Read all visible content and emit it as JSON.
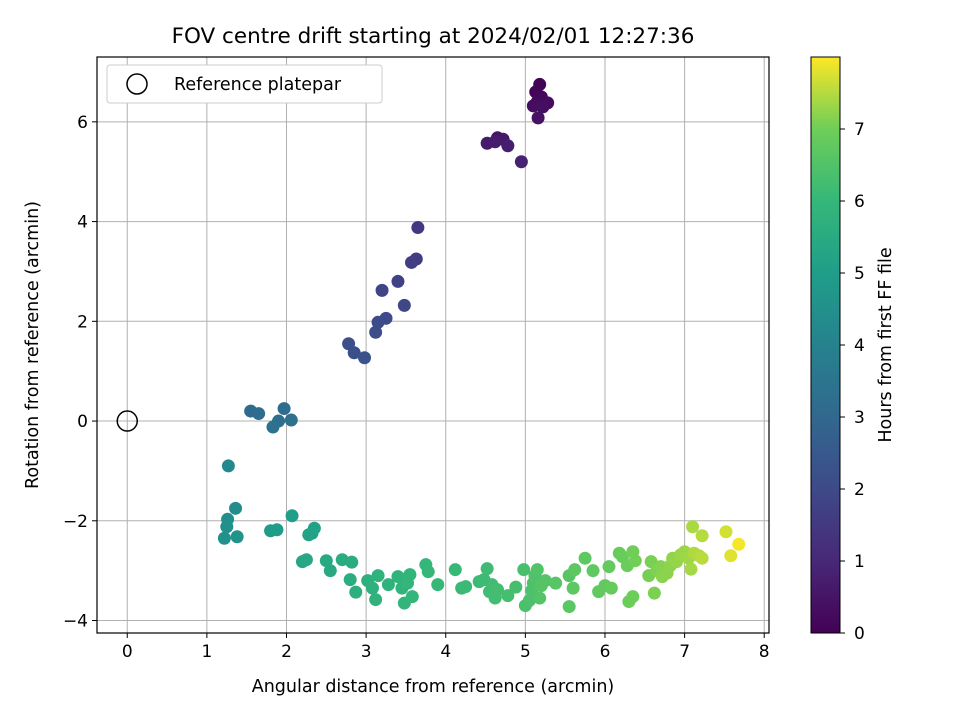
{
  "chart_data": {
    "type": "scatter",
    "title": "FOV centre drift starting at 2024/02/01 12:27:36",
    "xlabel": "Angular distance from reference (arcmin)",
    "ylabel": "Rotation from reference (arcmin)",
    "xlim": [
      -0.38,
      8.06
    ],
    "ylim": [
      -4.25,
      7.3
    ],
    "xticks": [
      0,
      1,
      2,
      3,
      4,
      5,
      6,
      7,
      8
    ],
    "yticks": [
      -4,
      -2,
      0,
      2,
      4,
      6
    ],
    "grid": true,
    "legend": {
      "position": "top-left",
      "entries": [
        "Reference platepar"
      ]
    },
    "reference_point": {
      "x": 0,
      "y": 0
    },
    "colorbar": {
      "label": "Hours from first FF file",
      "colormap": "viridis",
      "range": [
        0,
        8
      ],
      "ticks": [
        0,
        1,
        2,
        3,
        4,
        5,
        6,
        7
      ]
    },
    "points": [
      {
        "x": 5.18,
        "y": 6.75,
        "t": 0.05
      },
      {
        "x": 5.13,
        "y": 6.6,
        "t": 0.1
      },
      {
        "x": 5.2,
        "y": 6.5,
        "t": 0.15
      },
      {
        "x": 5.15,
        "y": 6.4,
        "t": 0.2
      },
      {
        "x": 5.28,
        "y": 6.38,
        "t": 0.25
      },
      {
        "x": 5.1,
        "y": 6.32,
        "t": 0.3
      },
      {
        "x": 5.22,
        "y": 6.3,
        "t": 0.35
      },
      {
        "x": 5.16,
        "y": 6.08,
        "t": 0.4
      },
      {
        "x": 4.65,
        "y": 5.68,
        "t": 0.55
      },
      {
        "x": 4.72,
        "y": 5.65,
        "t": 0.6
      },
      {
        "x": 4.52,
        "y": 5.57,
        "t": 0.65
      },
      {
        "x": 4.62,
        "y": 5.6,
        "t": 0.7
      },
      {
        "x": 4.78,
        "y": 5.52,
        "t": 0.75
      },
      {
        "x": 4.95,
        "y": 5.2,
        "t": 0.85
      },
      {
        "x": 3.65,
        "y": 3.88,
        "t": 1.5
      },
      {
        "x": 3.63,
        "y": 3.25,
        "t": 1.6
      },
      {
        "x": 3.57,
        "y": 3.18,
        "t": 1.65
      },
      {
        "x": 3.4,
        "y": 2.8,
        "t": 1.75
      },
      {
        "x": 3.2,
        "y": 2.62,
        "t": 1.85
      },
      {
        "x": 3.48,
        "y": 2.32,
        "t": 1.9
      },
      {
        "x": 3.25,
        "y": 2.06,
        "t": 2.0
      },
      {
        "x": 3.15,
        "y": 1.98,
        "t": 2.05
      },
      {
        "x": 3.12,
        "y": 1.78,
        "t": 2.1
      },
      {
        "x": 2.78,
        "y": 1.55,
        "t": 2.15
      },
      {
        "x": 2.85,
        "y": 1.37,
        "t": 2.2
      },
      {
        "x": 2.98,
        "y": 1.27,
        "t": 2.25
      },
      {
        "x": 1.55,
        "y": 0.2,
        "t": 3.1
      },
      {
        "x": 1.65,
        "y": 0.15,
        "t": 3.15
      },
      {
        "x": 1.97,
        "y": 0.25,
        "t": 3.2
      },
      {
        "x": 1.9,
        "y": 0.0,
        "t": 3.25
      },
      {
        "x": 2.06,
        "y": 0.02,
        "t": 3.3
      },
      {
        "x": 1.83,
        "y": -0.12,
        "t": 3.35
      },
      {
        "x": 1.27,
        "y": -0.9,
        "t": 4.2
      },
      {
        "x": 1.36,
        "y": -1.75,
        "t": 4.4
      },
      {
        "x": 1.26,
        "y": -1.97,
        "t": 4.45
      },
      {
        "x": 1.25,
        "y": -2.12,
        "t": 4.5
      },
      {
        "x": 1.22,
        "y": -2.35,
        "t": 4.55
      },
      {
        "x": 1.38,
        "y": -2.32,
        "t": 4.6
      },
      {
        "x": 1.8,
        "y": -2.2,
        "t": 4.9
      },
      {
        "x": 1.88,
        "y": -2.18,
        "t": 4.95
      },
      {
        "x": 2.07,
        "y": -1.9,
        "t": 5.05
      },
      {
        "x": 2.35,
        "y": -2.15,
        "t": 5.1
      },
      {
        "x": 2.32,
        "y": -2.25,
        "t": 5.15
      },
      {
        "x": 2.28,
        "y": -2.28,
        "t": 5.2
      },
      {
        "x": 2.2,
        "y": -2.82,
        "t": 5.3
      },
      {
        "x": 2.25,
        "y": -2.78,
        "t": 5.35
      },
      {
        "x": 2.5,
        "y": -2.8,
        "t": 5.4
      },
      {
        "x": 2.55,
        "y": -3.0,
        "t": 5.45
      },
      {
        "x": 2.7,
        "y": -2.78,
        "t": 5.5
      },
      {
        "x": 2.82,
        "y": -2.83,
        "t": 5.55
      },
      {
        "x": 2.8,
        "y": -3.18,
        "t": 5.6
      },
      {
        "x": 2.87,
        "y": -3.43,
        "t": 5.65
      },
      {
        "x": 3.02,
        "y": -3.2,
        "t": 5.7
      },
      {
        "x": 3.08,
        "y": -3.35,
        "t": 5.72
      },
      {
        "x": 3.12,
        "y": -3.58,
        "t": 5.75
      },
      {
        "x": 3.15,
        "y": -3.1,
        "t": 5.78
      },
      {
        "x": 3.28,
        "y": -3.28,
        "t": 5.8
      },
      {
        "x": 3.4,
        "y": -3.12,
        "t": 5.82
      },
      {
        "x": 3.45,
        "y": -3.35,
        "t": 5.85
      },
      {
        "x": 3.48,
        "y": -3.65,
        "t": 5.88
      },
      {
        "x": 3.52,
        "y": -3.25,
        "t": 5.9
      },
      {
        "x": 3.55,
        "y": -3.08,
        "t": 5.92
      },
      {
        "x": 3.58,
        "y": -3.52,
        "t": 5.95
      },
      {
        "x": 3.75,
        "y": -2.88,
        "t": 5.97
      },
      {
        "x": 3.78,
        "y": -3.02,
        "t": 6.0
      },
      {
        "x": 3.9,
        "y": -3.28,
        "t": 6.02
      },
      {
        "x": 4.12,
        "y": -2.98,
        "t": 6.05
      },
      {
        "x": 4.2,
        "y": -3.35,
        "t": 6.08
      },
      {
        "x": 4.25,
        "y": -3.32,
        "t": 6.1
      },
      {
        "x": 4.42,
        "y": -3.22,
        "t": 6.12
      },
      {
        "x": 4.48,
        "y": -3.18,
        "t": 6.15
      },
      {
        "x": 4.52,
        "y": -2.96,
        "t": 6.18
      },
      {
        "x": 4.55,
        "y": -3.42,
        "t": 6.2
      },
      {
        "x": 4.58,
        "y": -3.28,
        "t": 6.22
      },
      {
        "x": 4.62,
        "y": -3.55,
        "t": 6.25
      },
      {
        "x": 4.65,
        "y": -3.38,
        "t": 6.28
      },
      {
        "x": 4.78,
        "y": -3.5,
        "t": 6.3
      },
      {
        "x": 4.88,
        "y": -3.33,
        "t": 6.32
      },
      {
        "x": 4.98,
        "y": -2.98,
        "t": 6.35
      },
      {
        "x": 5.0,
        "y": -3.7,
        "t": 6.38
      },
      {
        "x": 5.05,
        "y": -3.6,
        "t": 6.4
      },
      {
        "x": 5.08,
        "y": -3.4,
        "t": 6.42
      },
      {
        "x": 5.1,
        "y": -3.25,
        "t": 6.45
      },
      {
        "x": 5.12,
        "y": -3.1,
        "t": 6.48
      },
      {
        "x": 5.15,
        "y": -2.98,
        "t": 6.5
      },
      {
        "x": 5.18,
        "y": -3.55,
        "t": 6.52
      },
      {
        "x": 5.2,
        "y": -3.3,
        "t": 6.55
      },
      {
        "x": 5.25,
        "y": -3.2,
        "t": 6.58
      },
      {
        "x": 5.38,
        "y": -3.25,
        "t": 6.6
      },
      {
        "x": 5.55,
        "y": -3.1,
        "t": 6.62
      },
      {
        "x": 5.55,
        "y": -3.72,
        "t": 6.65
      },
      {
        "x": 5.6,
        "y": -3.35,
        "t": 6.68
      },
      {
        "x": 5.62,
        "y": -2.98,
        "t": 6.7
      },
      {
        "x": 5.75,
        "y": -2.75,
        "t": 6.72
      },
      {
        "x": 5.85,
        "y": -3.0,
        "t": 6.75
      },
      {
        "x": 5.92,
        "y": -3.42,
        "t": 6.78
      },
      {
        "x": 6.0,
        "y": -3.3,
        "t": 6.8
      },
      {
        "x": 6.05,
        "y": -2.92,
        "t": 6.82
      },
      {
        "x": 6.08,
        "y": -3.35,
        "t": 6.85
      },
      {
        "x": 6.18,
        "y": -2.65,
        "t": 6.88
      },
      {
        "x": 6.22,
        "y": -2.72,
        "t": 6.9
      },
      {
        "x": 6.28,
        "y": -2.9,
        "t": 6.92
      },
      {
        "x": 6.3,
        "y": -3.62,
        "t": 6.95
      },
      {
        "x": 6.35,
        "y": -3.52,
        "t": 6.97
      },
      {
        "x": 6.35,
        "y": -2.62,
        "t": 7.0
      },
      {
        "x": 6.38,
        "y": -2.8,
        "t": 7.02
      },
      {
        "x": 6.55,
        "y": -3.1,
        "t": 7.05
      },
      {
        "x": 6.58,
        "y": -2.82,
        "t": 7.08
      },
      {
        "x": 6.62,
        "y": -3.45,
        "t": 7.1
      },
      {
        "x": 6.65,
        "y": -3.0,
        "t": 7.12
      },
      {
        "x": 6.7,
        "y": -2.92,
        "t": 7.15
      },
      {
        "x": 6.72,
        "y": -3.12,
        "t": 7.18
      },
      {
        "x": 6.78,
        "y": -3.05,
        "t": 7.2
      },
      {
        "x": 6.82,
        "y": -2.9,
        "t": 7.22
      },
      {
        "x": 6.85,
        "y": -2.75,
        "t": 7.25
      },
      {
        "x": 6.9,
        "y": -2.82,
        "t": 7.28
      },
      {
        "x": 6.95,
        "y": -2.68,
        "t": 7.3
      },
      {
        "x": 7.0,
        "y": -2.62,
        "t": 7.32
      },
      {
        "x": 7.05,
        "y": -2.75,
        "t": 7.35
      },
      {
        "x": 7.08,
        "y": -2.97,
        "t": 7.38
      },
      {
        "x": 7.1,
        "y": -2.12,
        "t": 7.42
      },
      {
        "x": 7.12,
        "y": -2.65,
        "t": 7.45
      },
      {
        "x": 7.18,
        "y": -2.7,
        "t": 7.48
      },
      {
        "x": 7.22,
        "y": -2.3,
        "t": 7.5
      },
      {
        "x": 7.22,
        "y": -2.75,
        "t": 7.52
      },
      {
        "x": 7.52,
        "y": -2.22,
        "t": 7.7
      },
      {
        "x": 7.58,
        "y": -2.7,
        "t": 7.8
      },
      {
        "x": 7.68,
        "y": -2.47,
        "t": 7.95
      }
    ]
  }
}
